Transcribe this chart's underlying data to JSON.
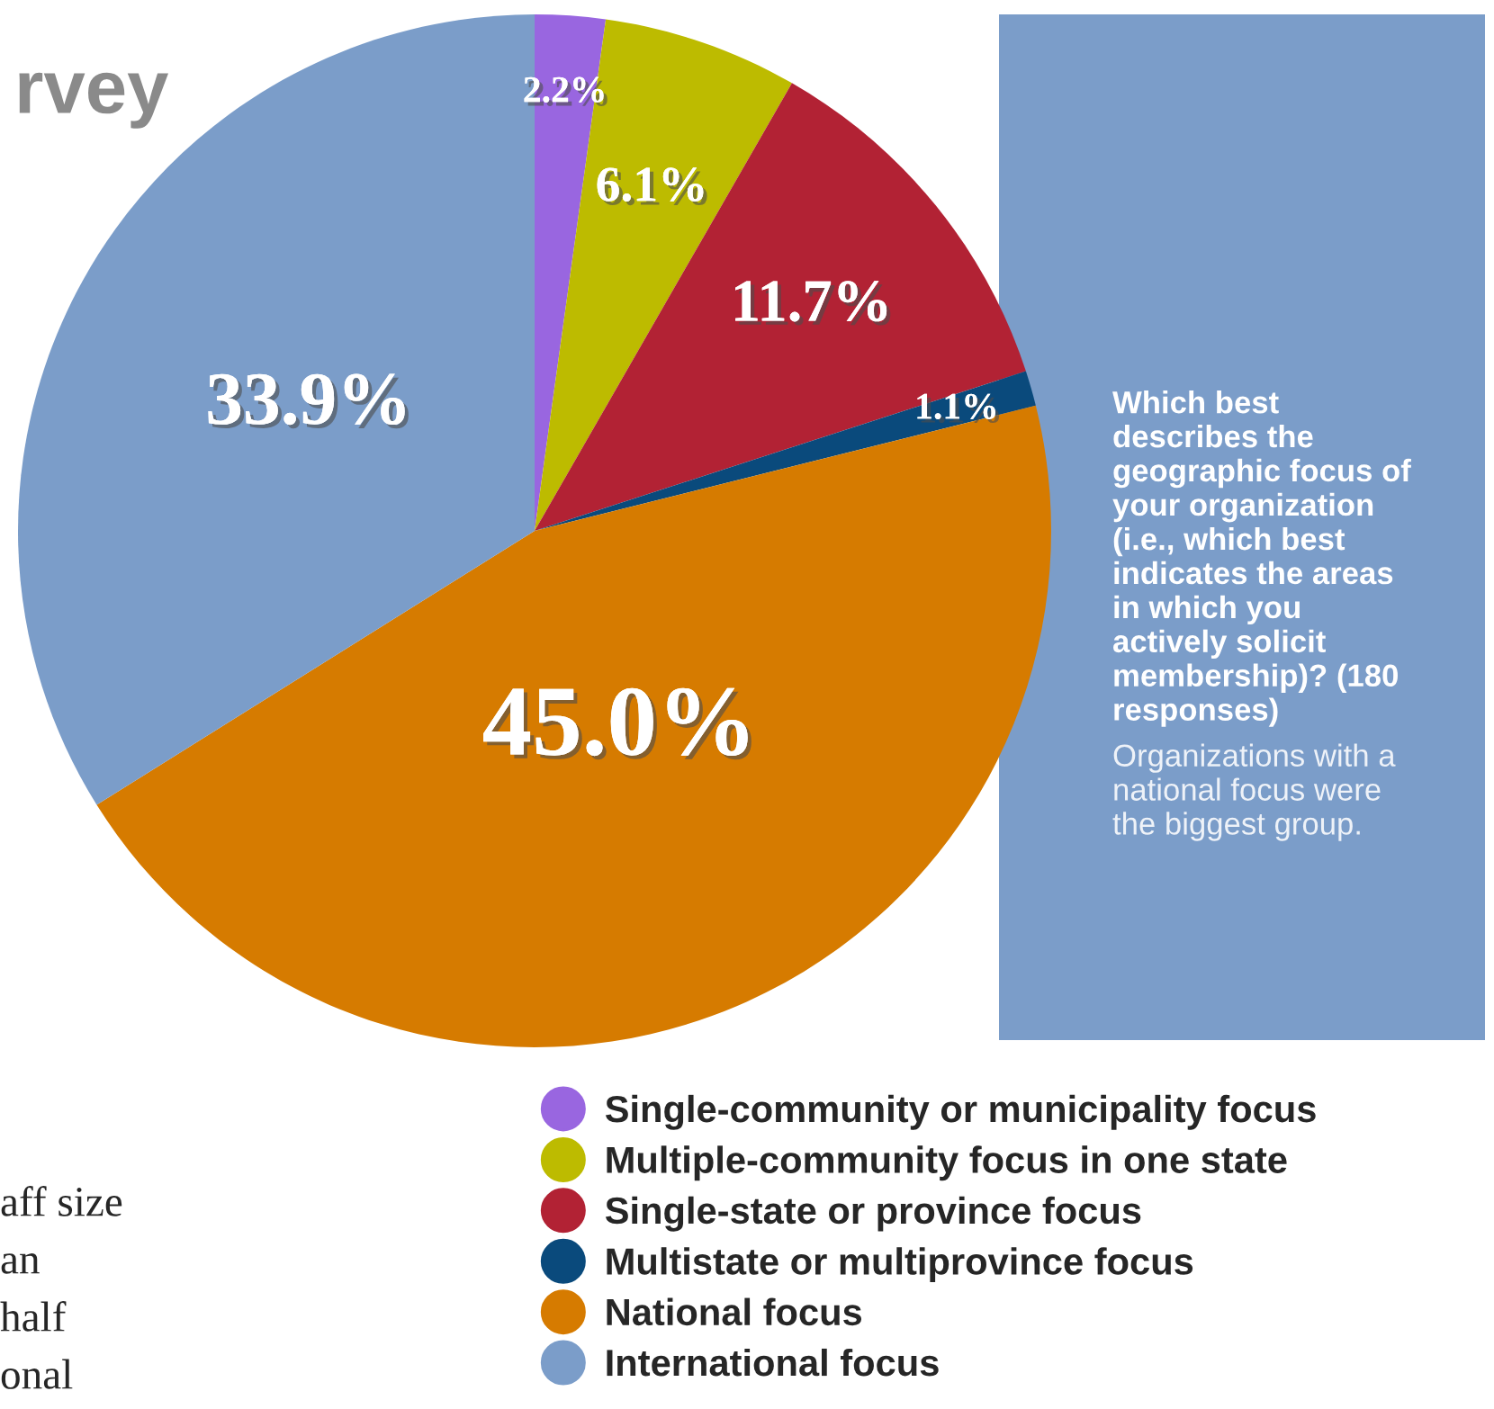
{
  "chart_data": {
    "type": "pie",
    "title": "rvey",
    "categories": [
      "Single-community or municipality focus",
      "Multiple-community focus in one state",
      "Single-state or province focus",
      "Multistate or multiprovince focus",
      "National focus",
      "International focus"
    ],
    "values": [
      2.2,
      6.1,
      11.7,
      1.1,
      45.0,
      33.9
    ],
    "value_labels": [
      "2.2%",
      "6.1%",
      "11.7%",
      "1.1%",
      "45.0%",
      "33.9%"
    ],
    "colors": [
      "#9966e0",
      "#bdbb00",
      "#b22234",
      "#0a4a7c",
      "#d67b00",
      "#7b9dc9"
    ],
    "legend": "bottom",
    "annotations": [
      "Which best describes the geographic focus of your organization (i.e., which best indicates the areas in which you actively solicit membership)? (180 responses)",
      "Organizations with a national focus were the biggest group.",
      "aff size",
      "an",
      "half",
      "onal"
    ]
  }
}
